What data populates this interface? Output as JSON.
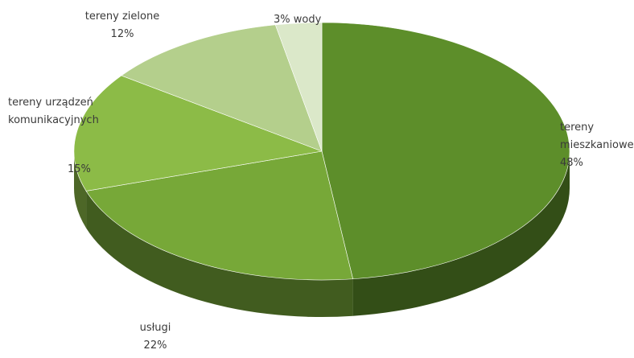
{
  "chart_data": {
    "type": "pie",
    "style": "3d",
    "title": "",
    "slices": [
      {
        "name": "tereny mieszkaniowe",
        "value": 48,
        "label_lines": [
          "tereny",
          "mieszkaniowe",
          "48%"
        ],
        "color": "#5d8e2a"
      },
      {
        "name": "usługi",
        "value": 22,
        "label_lines": [
          "usługi",
          "22%"
        ],
        "color": "#77a838"
      },
      {
        "name": "tereny urządzeń komunikacyjnych",
        "value": 15,
        "label_lines": [
          "tereny urządzeń",
          "komunikacyjnych",
          "15%"
        ],
        "color": "#8cbb47"
      },
      {
        "name": "tereny zielone",
        "value": 12,
        "label_lines": [
          "tereny zielone",
          "12%"
        ],
        "color": "#b4cf8c"
      },
      {
        "name": "wody",
        "value": 3,
        "label_lines": [
          "3% wody"
        ],
        "color": "#dbe8c9"
      }
    ]
  }
}
